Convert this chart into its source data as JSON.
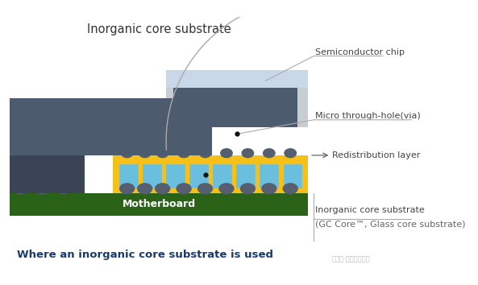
{
  "title_top": "Inorganic core substrate",
  "title_bottom": "Where an inorganic core substrate is used",
  "title_bottom_color": "#1a3a6b",
  "bg_color": "#ffffff",
  "labels": {
    "semiconductor_chip": "Semiconductor chip",
    "micro_via": "Micro through-hole(via)",
    "redistribution": "Redistribution layer",
    "motherboard": "Motherboard",
    "inorganic_core": "Inorganic core substrate",
    "gc_core": "(GC Core™, Glass core substrate)"
  },
  "colors": {
    "chip_dark": "#4d5b6e",
    "chip_dark2": "#3a4455",
    "chip_light_bg": "#c8cdd4",
    "chip_light_strip": "#b0bec8",
    "motherboard_green": "#2a6318",
    "gold_layer": "#f5c018",
    "blue_cells": "#6bbfde",
    "solder_balls": "#555f70",
    "annotation_line": "#999999",
    "arrow_color": "#666666",
    "label_color": "#444444"
  }
}
